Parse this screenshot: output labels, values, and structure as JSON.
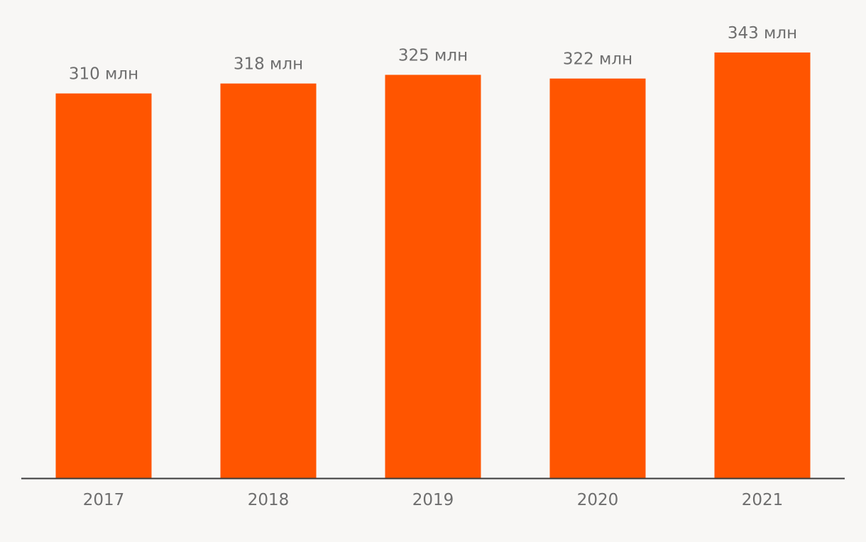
{
  "chart_data": {
    "type": "bar",
    "categories": [
      "2017",
      "2018",
      "2019",
      "2020",
      "2021"
    ],
    "values": [
      310,
      318,
      325,
      322,
      343
    ],
    "data_labels": [
      "310 млн",
      "318 млн",
      "325 млн",
      "322 млн",
      "343 млн"
    ],
    "title": "",
    "xlabel": "",
    "ylabel": "",
    "ylim": [
      0,
      343
    ],
    "grid": false,
    "legend": "none",
    "colors": {
      "bar": "#ff5500",
      "background": "#f8f7f5",
      "axis": "#3a3a3a",
      "label_text": "#6e6e6e"
    }
  }
}
